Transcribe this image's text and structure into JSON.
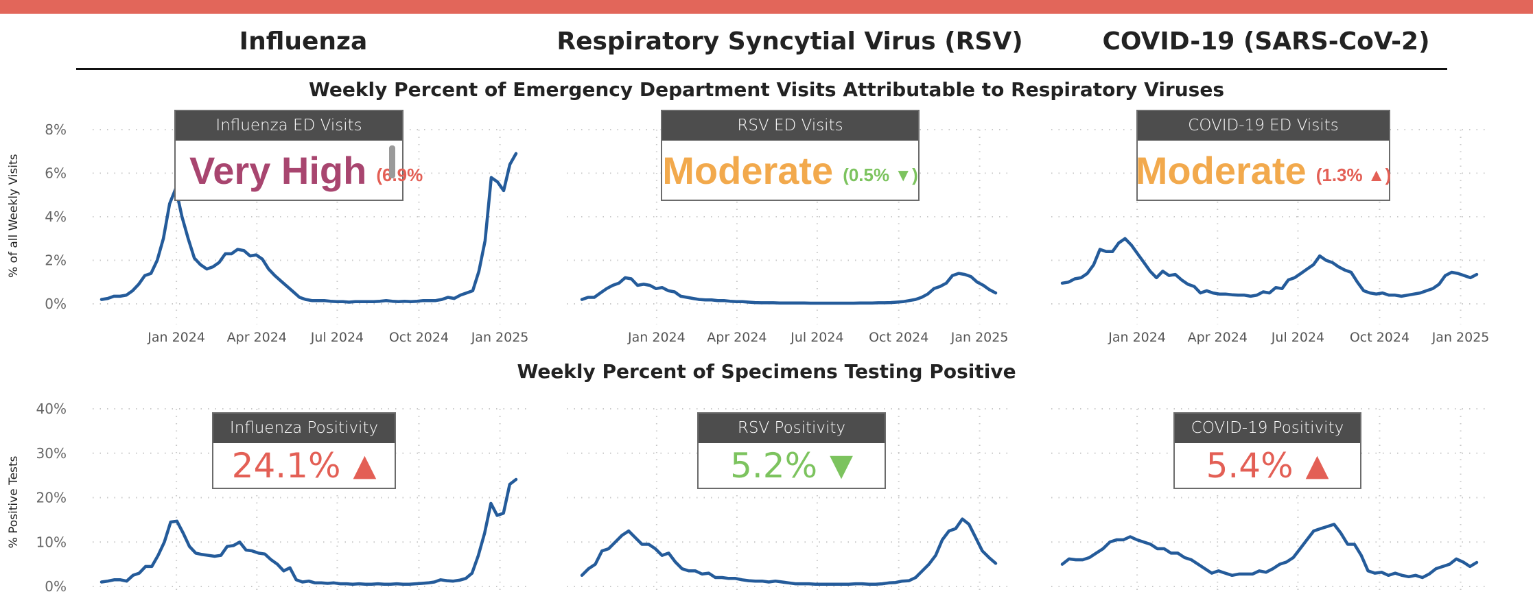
{
  "virus_headers": [
    "Influenza",
    "Respiratory Syncytial Virus (RSV)",
    "COVID-19 (SARS-CoV-2)"
  ],
  "sections": {
    "ed_title": "Weekly Percent of Emergency Department Visits Attributable to Respiratory Viruses",
    "positivity_title": "Weekly Percent of Specimens Testing Positive"
  },
  "colors": {
    "line": "#245B9A",
    "very_high": "#A8456F",
    "moderate": "#F2A94C",
    "up": "#E35F55",
    "down": "#7CC35E",
    "top_bar": "#E2665A",
    "card_header": "#4D4D4D"
  },
  "ed_cards": [
    {
      "title": "Influenza ED Visits",
      "level": "Very High",
      "level_color": "#A8456F",
      "detail": "(6.9%",
      "detail_color": "#E35F55"
    },
    {
      "title": "RSV ED Visits",
      "level": "Moderate",
      "level_color": "#F2A94C",
      "detail": "(0.5% ▼)",
      "detail_color": "#7CC35E"
    },
    {
      "title": "COVID-19 ED Visits",
      "level": "Moderate",
      "level_color": "#F2A94C",
      "detail": "(1.3% ▲)",
      "detail_color": "#E35F55"
    }
  ],
  "positivity_cards": [
    {
      "title": "Influenza Positivity",
      "value": "24.1%",
      "arrow": "▲",
      "color": "#E35F55"
    },
    {
      "title": "RSV Positivity",
      "value": "5.2%",
      "arrow": "▼",
      "color": "#7CC35E"
    },
    {
      "title": "COVID-19 Positivity",
      "value": "5.4%",
      "arrow": "▲",
      "color": "#E35F55"
    }
  ],
  "chart_data": [
    {
      "type": "line",
      "id": "flu_ed",
      "ylabel": "% of all Weekly Visits",
      "ylim": [
        0,
        8
      ],
      "yticks": [
        0,
        2,
        4,
        6,
        8
      ],
      "ytick_labels": [
        "0%",
        "2%",
        "4%",
        "6%",
        "8%"
      ],
      "xlim_weeks": [
        0,
        67
      ],
      "xticks": [
        12.1,
        25.1,
        38.1,
        51.3,
        64.4
      ],
      "xtick_labels": [
        "Jan 2024",
        "Apr 2024",
        "Jul 2024",
        "Oct 2024",
        "Jan 2025"
      ],
      "grid": true,
      "values": [
        0.2,
        0.25,
        0.35,
        0.35,
        0.4,
        0.6,
        0.9,
        1.3,
        1.4,
        2.0,
        3.0,
        4.6,
        5.3,
        4.0,
        3.0,
        2.1,
        1.8,
        1.6,
        1.7,
        1.9,
        2.3,
        2.3,
        2.5,
        2.45,
        2.2,
        2.25,
        2.05,
        1.6,
        1.3,
        1.05,
        0.8,
        0.55,
        0.3,
        0.2,
        0.15,
        0.15,
        0.15,
        0.12,
        0.1,
        0.1,
        0.08,
        0.1,
        0.1,
        0.1,
        0.1,
        0.12,
        0.15,
        0.12,
        0.1,
        0.12,
        0.1,
        0.12,
        0.15,
        0.15,
        0.15,
        0.2,
        0.3,
        0.25,
        0.4,
        0.5,
        0.6,
        1.5,
        2.9,
        5.8,
        5.6,
        5.2,
        6.4,
        6.9
      ]
    },
    {
      "type": "line",
      "id": "rsv_ed",
      "ylim": [
        0,
        8
      ],
      "yticks": [
        0,
        2,
        4,
        6,
        8
      ],
      "xlim_weeks": [
        0,
        67
      ],
      "xticks": [
        12.1,
        25.1,
        38.1,
        51.3,
        64.4
      ],
      "xtick_labels": [
        "Jan 2024",
        "Apr 2024",
        "Jul 2024",
        "Oct 2024",
        "Jan 2025"
      ],
      "grid": true,
      "values": [
        0.2,
        0.3,
        0.3,
        0.5,
        0.7,
        0.85,
        0.95,
        1.2,
        1.15,
        0.85,
        0.9,
        0.85,
        0.7,
        0.75,
        0.6,
        0.55,
        0.35,
        0.3,
        0.25,
        0.2,
        0.18,
        0.18,
        0.15,
        0.15,
        0.12,
        0.1,
        0.1,
        0.08,
        0.06,
        0.05,
        0.05,
        0.05,
        0.04,
        0.04,
        0.04,
        0.04,
        0.04,
        0.03,
        0.03,
        0.03,
        0.03,
        0.03,
        0.03,
        0.03,
        0.03,
        0.04,
        0.04,
        0.04,
        0.05,
        0.05,
        0.06,
        0.08,
        0.1,
        0.15,
        0.2,
        0.3,
        0.45,
        0.7,
        0.8,
        0.95,
        1.3,
        1.4,
        1.35,
        1.25,
        1.0,
        0.85,
        0.65,
        0.5
      ]
    },
    {
      "type": "line",
      "id": "covid_ed",
      "ylim": [
        0,
        8
      ],
      "yticks": [
        0,
        2,
        4,
        6,
        8
      ],
      "xlim_weeks": [
        0,
        67
      ],
      "xticks": [
        12.1,
        25.1,
        38.1,
        51.3,
        64.4
      ],
      "xtick_labels": [
        "Jan 2024",
        "Apr 2024",
        "Jul 2024",
        "Oct 2024",
        "Jan 2025"
      ],
      "grid": true,
      "values": [
        0.95,
        1.0,
        1.15,
        1.2,
        1.4,
        1.8,
        2.5,
        2.4,
        2.4,
        2.8,
        3.0,
        2.7,
        2.3,
        1.9,
        1.5,
        1.2,
        1.5,
        1.3,
        1.35,
        1.1,
        0.9,
        0.8,
        0.5,
        0.6,
        0.5,
        0.45,
        0.45,
        0.42,
        0.4,
        0.4,
        0.35,
        0.4,
        0.55,
        0.5,
        0.75,
        0.7,
        1.1,
        1.2,
        1.4,
        1.6,
        1.8,
        2.2,
        2.0,
        1.9,
        1.7,
        1.55,
        1.45,
        1.0,
        0.6,
        0.5,
        0.45,
        0.5,
        0.4,
        0.4,
        0.35,
        0.4,
        0.45,
        0.5,
        0.6,
        0.7,
        0.9,
        1.3,
        1.45,
        1.4,
        1.3,
        1.2,
        1.35
      ]
    },
    {
      "type": "line",
      "id": "flu_pos",
      "ylabel": "% Positive Tests",
      "ylim": [
        0,
        40
      ],
      "yticks": [
        0,
        10,
        20,
        30,
        40
      ],
      "ytick_labels": [
        "0%",
        "10%",
        "20%",
        "30%",
        "40%"
      ],
      "xlim_weeks": [
        0,
        67
      ],
      "xticks": [
        12.1,
        25.1,
        38.1,
        51.3,
        64.4
      ],
      "grid": true,
      "values": [
        1,
        1.2,
        1.5,
        1.5,
        1.2,
        2.5,
        3,
        4.5,
        4.5,
        7,
        10,
        14.5,
        14.7,
        12,
        9,
        7.5,
        7.2,
        7,
        6.8,
        7,
        9,
        9.2,
        10,
        8.2,
        8,
        7.5,
        7.3,
        6,
        5,
        3.5,
        4.2,
        1.5,
        1,
        1.2,
        0.8,
        0.8,
        0.7,
        0.8,
        0.6,
        0.6,
        0.5,
        0.6,
        0.5,
        0.5,
        0.6,
        0.5,
        0.5,
        0.6,
        0.5,
        0.5,
        0.6,
        0.7,
        0.8,
        1.0,
        1.5,
        1.3,
        1.2,
        1.4,
        1.8,
        3,
        7,
        12,
        18.7,
        16,
        16.5,
        23,
        24.1
      ]
    },
    {
      "type": "line",
      "id": "rsv_pos",
      "ylim": [
        0,
        40
      ],
      "yticks": [
        0,
        10,
        20,
        30,
        40
      ],
      "xlim_weeks": [
        0,
        67
      ],
      "xticks": [
        12.1,
        25.1,
        38.1,
        51.3,
        64.4
      ],
      "grid": true,
      "values": [
        2.5,
        4,
        5,
        8,
        8.5,
        10,
        11.5,
        12.5,
        11,
        9.5,
        9.5,
        8.5,
        7,
        7.5,
        5.5,
        4,
        3.5,
        3.5,
        2.8,
        3,
        2,
        2,
        1.8,
        1.8,
        1.5,
        1.3,
        1.2,
        1.2,
        1,
        1.2,
        1,
        0.8,
        0.6,
        0.6,
        0.6,
        0.5,
        0.5,
        0.5,
        0.5,
        0.5,
        0.5,
        0.6,
        0.6,
        0.5,
        0.5,
        0.6,
        0.8,
        0.9,
        1.2,
        1.3,
        2,
        3.5,
        5,
        7,
        10.5,
        12.5,
        13,
        15.2,
        14,
        11,
        8,
        6.5,
        5.2
      ]
    },
    {
      "type": "line",
      "id": "covid_pos",
      "ylim": [
        0,
        40
      ],
      "yticks": [
        0,
        10,
        20,
        30,
        40
      ],
      "xlim_weeks": [
        0,
        67
      ],
      "xticks": [
        12.1,
        25.1,
        38.1,
        51.3,
        64.4
      ],
      "grid": true,
      "values": [
        5,
        6.2,
        6,
        6,
        6.5,
        7.5,
        8.5,
        10,
        10.5,
        10.5,
        11.2,
        10.5,
        10,
        9.5,
        8.5,
        8.5,
        7.5,
        7.5,
        6.5,
        6,
        5,
        4,
        3,
        3.5,
        3,
        2.5,
        2.8,
        2.8,
        2.8,
        3.5,
        3.2,
        4,
        5,
        5.5,
        6.5,
        8.5,
        10.5,
        12.5,
        13,
        13.5,
        14,
        12,
        9.5,
        9.5,
        7,
        3.5,
        3,
        3.2,
        2.5,
        3,
        2.5,
        2.2,
        2.5,
        2,
        2.8,
        4,
        4.5,
        5,
        6.2,
        5.5,
        4.5,
        5.4
      ]
    }
  ]
}
